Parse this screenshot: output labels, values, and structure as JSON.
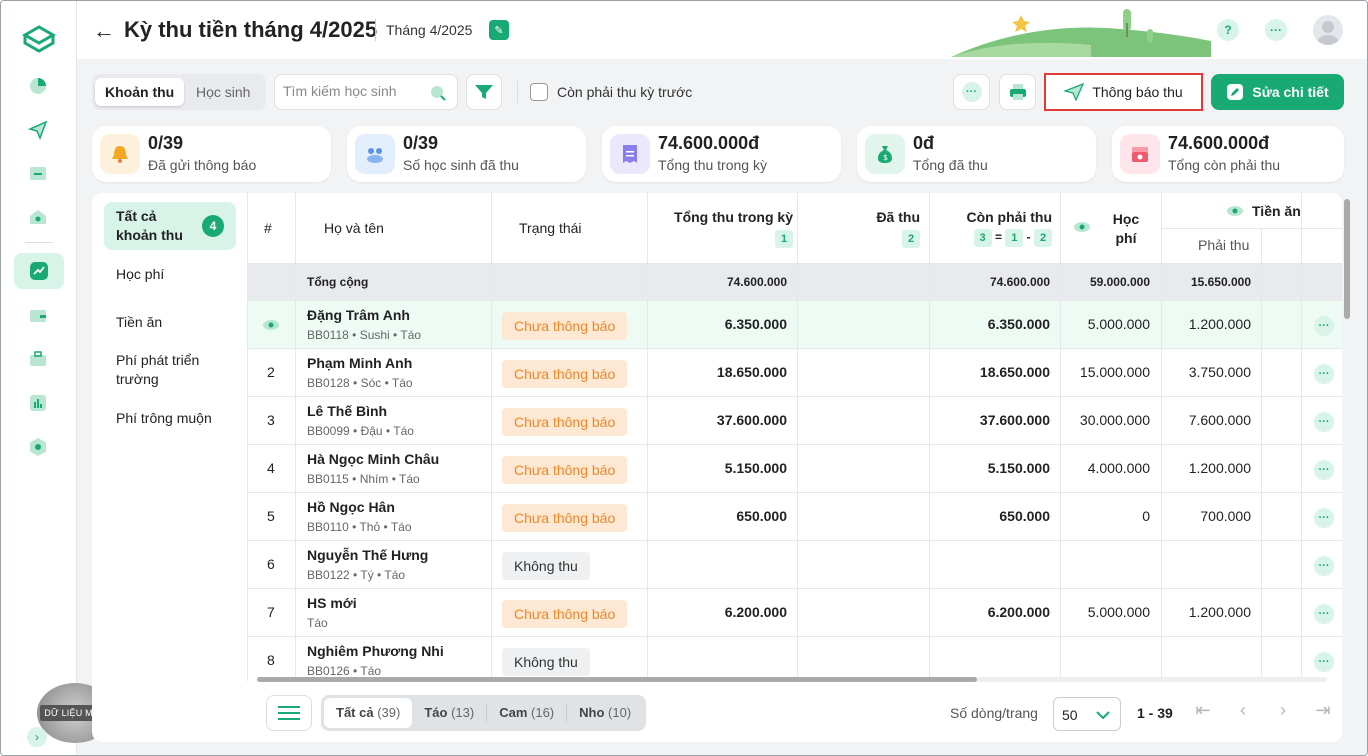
{
  "header": {
    "title": "Kỳ thu tiền tháng 4/2025",
    "period": "Tháng 4/2025"
  },
  "toolbar": {
    "tab_fees": "Khoản thu",
    "tab_students": "Học sinh",
    "search_placeholder": "Tìm kiếm học sinh",
    "checkbox_label": "Còn phải thu kỳ trước",
    "notify_label": "Thông báo thu",
    "edit_label": "Sửa chi tiết"
  },
  "stats": [
    {
      "value": "0/39",
      "label": "Đã gửi thông báo",
      "color": "#f5a623"
    },
    {
      "value": "0/39",
      "label": "Số học sinh đã thu",
      "color": "#3b82f6"
    },
    {
      "value": "74.600.000đ",
      "label": "Tổng thu trong kỳ",
      "color": "#7c6ee6"
    },
    {
      "value": "0đ",
      "label": "Tổng đã thu",
      "color": "#19a974"
    },
    {
      "value": "74.600.000đ",
      "label": "Tổng còn phải thu",
      "color": "#ef5a6f"
    }
  ],
  "categories": {
    "all_label": "Tất cả khoản thu",
    "all_count": "4",
    "items": [
      "Học phí",
      "Tiền ăn",
      "Phí phát triển trường",
      "Phí trông muộn"
    ]
  },
  "table": {
    "headers": {
      "index": "#",
      "name": "Họ và tên",
      "status": "Trạng thái",
      "total": "Tổng thu trong kỳ",
      "total_num": "1",
      "paid": "Đã thu",
      "paid_num": "2",
      "remaining": "Còn phải thu",
      "rem_formula": [
        "3",
        "=",
        "1",
        "-",
        "2"
      ],
      "tuition": "Học phí",
      "meals": "Tiền ăn",
      "meals_sub": "Phải thu"
    },
    "total_row": {
      "label": "Tổng cộng",
      "total": "74.600.000",
      "remaining": "74.600.000",
      "tuition": "59.000.000",
      "meals": "15.650.000"
    },
    "rows": [
      {
        "idx": "",
        "name": "Đặng Trâm Anh",
        "code": "BB0118",
        "class1": "Sushi",
        "class2": "Táo",
        "status": "Chưa thông báo",
        "total": "6.350.000",
        "paid": "",
        "remaining": "6.350.000",
        "tuition": "5.000.000",
        "meals": "1.200.000"
      },
      {
        "idx": "2",
        "name": "Phạm Minh Anh",
        "code": "BB0128",
        "class1": "Sóc",
        "class2": "Táo",
        "status": "Chưa thông báo",
        "total": "18.650.000",
        "paid": "",
        "remaining": "18.650.000",
        "tuition": "15.000.000",
        "meals": "3.750.000"
      },
      {
        "idx": "3",
        "name": "Lê Thế Bình",
        "code": "BB0099",
        "class1": "Đậu",
        "class2": "Táo",
        "status": "Chưa thông báo",
        "total": "37.600.000",
        "paid": "",
        "remaining": "37.600.000",
        "tuition": "30.000.000",
        "meals": "7.600.000"
      },
      {
        "idx": "4",
        "name": "Hà Ngọc Minh Châu",
        "code": "BB0115",
        "class1": "Nhím",
        "class2": "Táo",
        "status": "Chưa thông báo",
        "total": "5.150.000",
        "paid": "",
        "remaining": "5.150.000",
        "tuition": "4.000.000",
        "meals": "1.200.000"
      },
      {
        "idx": "5",
        "name": "Hồ Ngọc Hân",
        "code": "BB0110",
        "class1": "Thỏ",
        "class2": "Táo",
        "status": "Chưa thông báo",
        "total": "650.000",
        "paid": "",
        "remaining": "650.000",
        "tuition": "0",
        "meals": "700.000"
      },
      {
        "idx": "6",
        "name": "Nguyễn Thế Hưng",
        "code": "BB0122",
        "class1": "Tý",
        "class2": "Táo",
        "status": "Không thu",
        "total": "",
        "paid": "",
        "remaining": "",
        "tuition": "",
        "meals": ""
      },
      {
        "idx": "7",
        "name": "HS mới",
        "code": "",
        "class1": "",
        "class2": "Táo",
        "status": "Chưa thông báo",
        "total": "6.200.000",
        "paid": "",
        "remaining": "6.200.000",
        "tuition": "5.000.000",
        "meals": "1.200.000"
      },
      {
        "idx": "8",
        "name": "Nghiêm Phương Nhi",
        "code": "BB0126",
        "class1": "",
        "class2": "Táo",
        "status": "Không thu",
        "total": "",
        "paid": "",
        "remaining": "",
        "tuition": "",
        "meals": ""
      }
    ]
  },
  "footer": {
    "segments": [
      {
        "label": "Tất cả",
        "count": "(39)"
      },
      {
        "label": "Táo",
        "count": "(13)"
      },
      {
        "label": "Cam",
        "count": "(16)"
      },
      {
        "label": "Nho",
        "count": "(10)"
      }
    ],
    "rows_per_page_label": "Số dòng/trang",
    "rows_per_page": "50",
    "range": "1 - 39"
  },
  "watermark": "DỮ LIỆU MẪU",
  "colors": {
    "accent": "#19a974",
    "pending_bg": "#fde8d3",
    "pending_fg": "#e8892b",
    "highlight": "#e53935"
  }
}
